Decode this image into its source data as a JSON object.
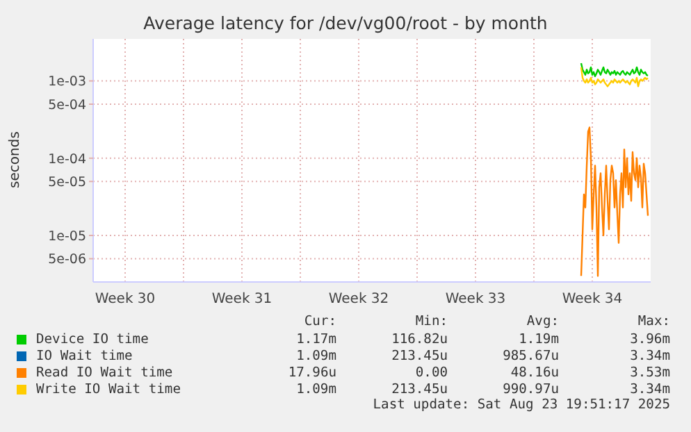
{
  "chart_data": {
    "type": "line",
    "title": "Average latency for /dev/vg00/root - by month",
    "ylabel": "seconds",
    "log": "y",
    "x": [
      "2025-08-20T20:00",
      "2025-08-20T22:00",
      "2025-08-21T00:00",
      "2025-08-21T02:00",
      "2025-08-21T04:00",
      "2025-08-21T06:00",
      "2025-08-21T08:00",
      "2025-08-21T10:00",
      "2025-08-21T12:00",
      "2025-08-21T14:00",
      "2025-08-21T16:00",
      "2025-08-21T18:00",
      "2025-08-21T20:00",
      "2025-08-21T22:00",
      "2025-08-22T00:00",
      "2025-08-22T02:00",
      "2025-08-22T04:00",
      "2025-08-22T06:00",
      "2025-08-22T08:00",
      "2025-08-22T10:00",
      "2025-08-22T12:00",
      "2025-08-22T14:00",
      "2025-08-22T16:00",
      "2025-08-22T18:00",
      "2025-08-22T20:00",
      "2025-08-22T22:00",
      "2025-08-23T00:00",
      "2025-08-23T02:00",
      "2025-08-23T04:00",
      "2025-08-23T06:00",
      "2025-08-23T08:00",
      "2025-08-23T10:00",
      "2025-08-23T12:00",
      "2025-08-23T14:00",
      "2025-08-23T16:00",
      "2025-08-23T18:00",
      "2025-08-23T20:00",
      "2025-08-23T22:00",
      "2025-08-24T00:00",
      "2025-08-24T02:00",
      "2025-08-24T04:00",
      "2025-08-24T06:00",
      "2025-08-24T08:00",
      "2025-08-24T10:00",
      "2025-08-24T12:00",
      "2025-08-24T14:00",
      "2025-08-24T16:00",
      "2025-08-24T18:00",
      "2025-08-24T20:00"
    ],
    "xlim": [
      "2025-07-22T14:00",
      "2025-08-25T00:00"
    ],
    "xticks": [
      {
        "value": "2025-07-24T12:00",
        "label": "Week 30"
      },
      {
        "value": "2025-07-28T00:00",
        "label": null
      },
      {
        "value": "2025-07-31T12:00",
        "label": "Week 31"
      },
      {
        "value": "2025-08-04T00:00",
        "label": null
      },
      {
        "value": "2025-08-07T12:00",
        "label": "Week 32"
      },
      {
        "value": "2025-08-11T00:00",
        "label": null
      },
      {
        "value": "2025-08-14T12:00",
        "label": "Week 33"
      },
      {
        "value": "2025-08-18T00:00",
        "label": null
      },
      {
        "value": "2025-08-21T12:00",
        "label": "Week 34"
      }
    ],
    "ylim": [
      2.5e-06,
      0.0035
    ],
    "yticks": [
      {
        "value": 5e-06,
        "label": "5e-06"
      },
      {
        "value": 1e-05,
        "label": "1e-05"
      },
      {
        "value": 5e-05,
        "label": "5e-05"
      },
      {
        "value": 0.0001,
        "label": "1e-04"
      },
      {
        "value": 0.0005,
        "label": "5e-04"
      },
      {
        "value": 0.001,
        "label": "1e-03"
      }
    ],
    "grid": true,
    "legend": "bottom",
    "series": [
      {
        "name": "Device IO time",
        "color": "#00cc00",
        "values": [
          0.0017,
          0.0014,
          0.0013,
          0.0012,
          0.0014,
          0.00125,
          0.0013,
          0.0015,
          0.0012,
          0.0013,
          0.00115,
          0.00125,
          0.0014,
          0.0013,
          0.0012,
          0.00135,
          0.0015,
          0.0013,
          0.00125,
          0.0014,
          0.0013,
          0.0012,
          0.0013,
          0.00125,
          0.00135,
          0.0012,
          0.0013,
          0.00125,
          0.0012,
          0.0013,
          0.00135,
          0.00125,
          0.0012,
          0.0013,
          0.00125,
          0.0012,
          0.0013,
          0.0014,
          0.00125,
          0.0013,
          0.0015,
          0.0013,
          0.0012,
          0.0014,
          0.0013,
          0.00125,
          0.0013,
          0.0012,
          0.00117
        ]
      },
      {
        "name": "IO Wait time",
        "color": "#0066b3",
        "values": [
          null,
          null,
          null,
          null,
          null,
          null,
          null,
          null,
          null,
          null,
          null,
          null,
          null,
          null,
          null,
          null,
          null,
          null,
          null,
          null,
          null,
          null,
          null,
          null,
          null,
          null,
          null,
          null,
          null,
          null,
          null,
          null,
          null,
          null,
          null,
          null,
          null,
          null,
          null,
          null,
          null,
          null,
          null,
          null,
          null,
          null,
          null,
          null,
          null
        ]
      },
      {
        "name": "Read IO Wait time",
        "color": "#ff8000",
        "values": [
          3e-06,
          1e-05,
          3.4e-05,
          2.3e-05,
          7.8e-05,
          0.00022,
          0.00025,
          0.0001,
          1.2e-05,
          3.4e-05,
          8e-05,
          2.3e-05,
          3e-06,
          4.2e-05,
          6.4e-05,
          2.3e-05,
          1e-05,
          3.4e-05,
          8e-05,
          2.8e-05,
          1.2e-05,
          5.2e-05,
          8e-05,
          6.4e-05,
          2.3e-05,
          5.2e-05,
          1.9e-05,
          8e-06,
          3.4e-05,
          6.4e-05,
          2.3e-05,
          0.00013,
          4.2e-05,
          0.0001,
          3.4e-05,
          6.4e-05,
          2.8e-05,
          0.00012,
          6.4e-05,
          5.2e-05,
          0.0001,
          4.2e-05,
          8e-05,
          5.6e-05,
          2.3e-05,
          8.5e-05,
          6.4e-05,
          3.4e-05,
          1.8e-05
        ]
      },
      {
        "name": "Write IO Wait time",
        "color": "#ffcc00",
        "values": [
          0.0015,
          0.0011,
          0.001,
          0.00095,
          0.00105,
          0.00095,
          0.001,
          0.0011,
          0.00095,
          0.001,
          0.0009,
          0.00095,
          0.00105,
          0.001,
          0.00095,
          0.001,
          0.00105,
          0.00095,
          0.0009,
          0.00085,
          0.0009,
          0.00095,
          0.001,
          0.00095,
          0.00105,
          0.001,
          0.00095,
          0.001,
          0.00095,
          0.001,
          0.00105,
          0.001,
          0.00095,
          0.001,
          0.00095,
          0.0009,
          0.001,
          0.00105,
          0.001,
          0.00095,
          0.0011,
          0.00085,
          0.001,
          0.00105,
          0.001,
          0.00105,
          0.0011,
          0.00105,
          0.00109
        ]
      }
    ],
    "annotations": [
      "Cur:",
      "Min:",
      "Avg:",
      "Max:",
      "1.17m",
      "116.82u",
      "1.19m",
      "3.96m",
      "1.09m",
      "213.45u",
      "985.67u",
      "3.34m",
      "17.96u",
      "0.00",
      "48.16u",
      "3.53m",
      "1.09m",
      "213.45u",
      "990.97u",
      "3.34m",
      "Last update: Sat Aug 23 19:51:17 2025"
    ]
  }
}
